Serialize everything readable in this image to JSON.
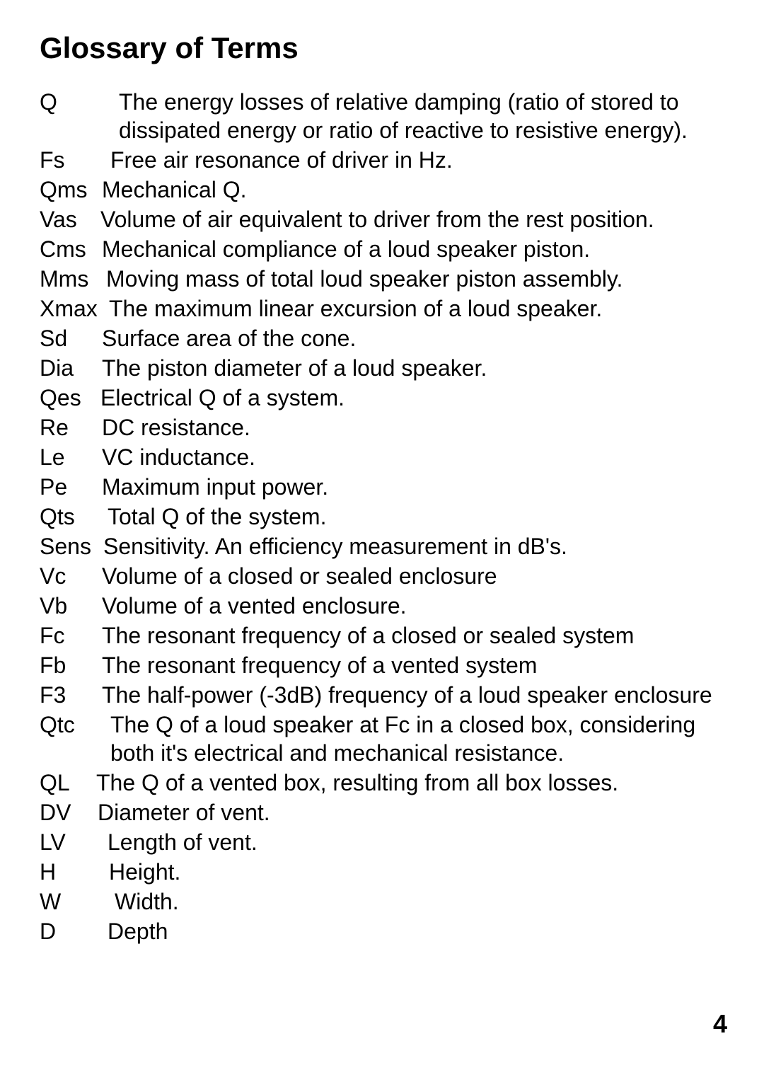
{
  "title": "Glossary of Terms",
  "entries": [
    {
      "term": "Q",
      "def": "The energy losses of relative damping (ratio of stored to dissipated energy or ratio of reactive to resistive energy).",
      "termWidth": 112,
      "indent": true
    },
    {
      "term": "Fs",
      "def": "Free air resonance of driver in Hz.",
      "termWidth": 100
    },
    {
      "term": "Qms",
      "def": "Mechanical Q.",
      "termWidth": 88
    },
    {
      "term": "Vas",
      "def": "Volume of air equivalent to driver from the rest position.",
      "termWidth": 86
    },
    {
      "term": "Cms",
      "def": "Mechanical compliance of a loud speaker piston.",
      "termWidth": 88
    },
    {
      "term": "Mms",
      "def": "Moving mass of total loud speaker piston assembly.",
      "termWidth": 94
    },
    {
      "term": "Xmax",
      "def": "The maximum linear excursion of a loud speaker.",
      "termWidth": 98
    },
    {
      "term": "Sd",
      "def": "Surface area of the cone.",
      "termWidth": 88
    },
    {
      "term": "Dia",
      "def": "The piston diameter of a loud speaker.",
      "termWidth": 88
    },
    {
      "term": "Qes",
      "def": "Electrical Q of a system.",
      "termWidth": 86
    },
    {
      "term": "Re",
      "def": "DC resistance.",
      "termWidth": 88
    },
    {
      "term": "Le",
      "def": "VC inductance.",
      "termWidth": 88
    },
    {
      "term": "Pe",
      "def": "Maximum input power.",
      "termWidth": 88
    },
    {
      "term": "Qts",
      "def": "Total Q of the system.",
      "termWidth": 96
    },
    {
      "term": "Sens",
      "def": "Sensitivity. An efficiency measurement in dB's.",
      "termWidth": 90
    },
    {
      "term": "Vc",
      "def": "Volume of a closed or sealed enclosure",
      "termWidth": 88
    },
    {
      "term": "Vb",
      "def": "Volume of a vented enclosure.",
      "termWidth": 88
    },
    {
      "term": "Fc",
      "def": "The resonant frequency of a closed or sealed system",
      "termWidth": 88
    },
    {
      "term": "Fb",
      "def": "The resonant frequency of a vented system",
      "termWidth": 88
    },
    {
      "term": "F3",
      "def": "The half-power (-3dB) frequency of a loud speaker enclosure",
      "termWidth": 88
    },
    {
      "term": "Qtc",
      "def": "The Q of a loud speaker at Fc in a closed box, considering both it's electrical and mechanical resistance.",
      "termWidth": 100,
      "indent": true,
      "indentPad": 82
    },
    {
      "term": "QL",
      "def": "The Q of a vented box, resulting from all box losses.",
      "termWidth": 80
    },
    {
      "term": "DV",
      "def": "Diameter of vent.",
      "termWidth": 82
    },
    {
      "term": "LV",
      "def": "Length of vent.",
      "termWidth": 96
    },
    {
      "term": "H",
      "def": "Height.",
      "termWidth": 98
    },
    {
      "term": "W",
      "def": "Width.",
      "termWidth": 106
    },
    {
      "term": "D",
      "def": "Depth",
      "termWidth": 96
    }
  ],
  "pageNumber": "4"
}
